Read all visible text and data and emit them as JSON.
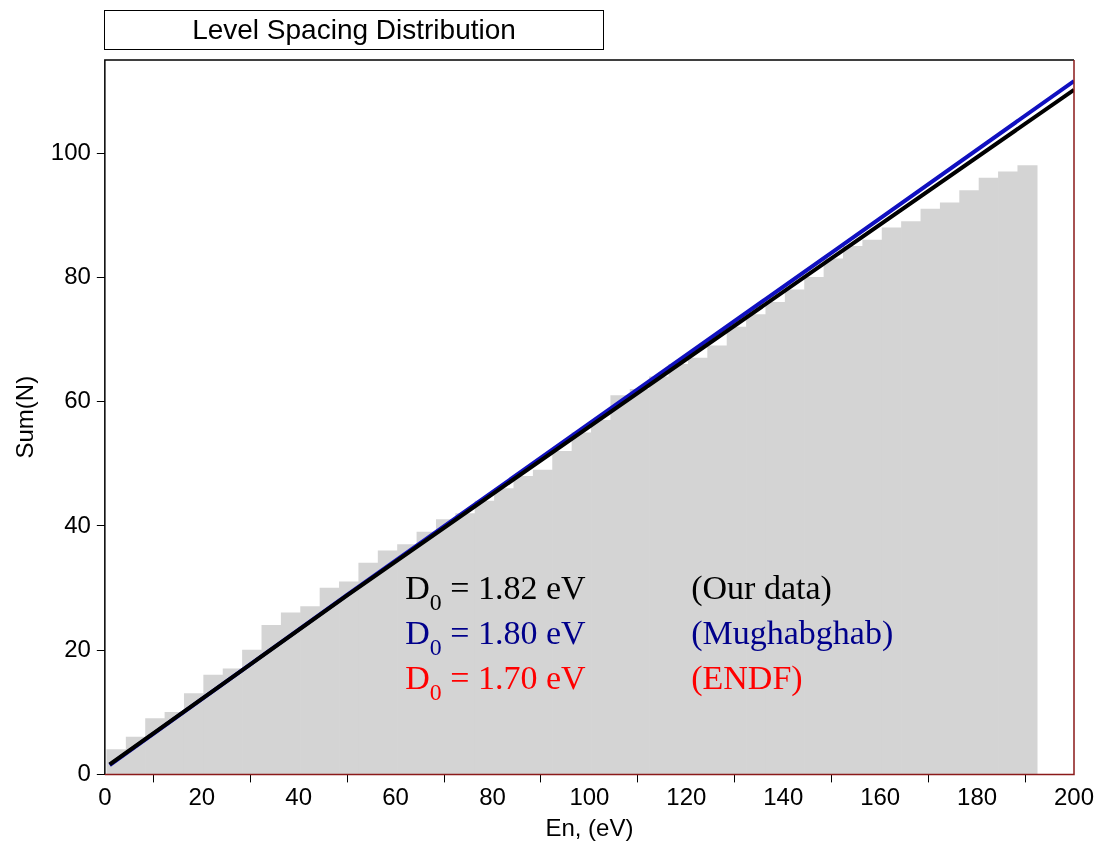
{
  "chart_data": {
    "type": "histogram",
    "title": "Level Spacing Distribution",
    "xlabel": "En, (eV)",
    "ylabel": "Sum(N)",
    "bins": [
      0.4,
      4.4,
      8.4,
      12.4,
      16.4,
      20.4,
      24.4,
      28.4,
      32.4,
      36.4,
      40.4,
      44.4,
      48.4,
      52.4,
      56.4,
      60.4,
      64.4,
      68.4,
      72.4,
      76.4,
      80.4,
      84.4,
      88.4,
      92.4,
      96.4,
      100.4,
      104.4,
      108.4,
      112.4,
      116.4,
      120.4,
      124.4,
      128.4,
      132.4,
      136.4,
      140.4,
      144.4,
      148.4,
      152.4,
      156.4,
      160.4,
      164.4,
      168.4,
      172.4,
      176.4,
      180.4,
      184.4,
      188.4,
      192.4
    ],
    "values": [
      4,
      6,
      9,
      10,
      13,
      16,
      17,
      20,
      24,
      26,
      27,
      30,
      31,
      34,
      36,
      37,
      39,
      41,
      42,
      44,
      46,
      48,
      49,
      52,
      55,
      57,
      61,
      62,
      64,
      66,
      67,
      69,
      72,
      74,
      76,
      78,
      80,
      83,
      85,
      86,
      88,
      89,
      91,
      92,
      94,
      96,
      97,
      98
    ],
    "color": "#d4d4d4",
    "series": [
      {
        "type": "line",
        "color": "#000000",
        "x": [
          1,
          50,
          100,
          150,
          200
        ],
        "values": [
          1.6,
          28.8,
          56,
          83.1,
          110.2
        ]
      },
      {
        "type": "line",
        "color": "#1010c0",
        "x": [
          1,
          50,
          100,
          150,
          200
        ],
        "values": [
          1.5,
          28.9,
          56.5,
          84,
          111.6
        ]
      }
    ],
    "xlim": [
      0,
      200
    ],
    "xticks": [
      0,
      20,
      40,
      60,
      80,
      100,
      120,
      140,
      160,
      180,
      200
    ],
    "ylim": [
      0,
      115
    ],
    "yticks": [
      0,
      20,
      40,
      60,
      80,
      100
    ],
    "legend": false,
    "annotations": [
      "D$_{0}$ = 1.82 eV",
      "(Our data)",
      "D$_{0}$ = 1.80 eV",
      "(Mughabghab)",
      "D$_{0}$ = 1.70 eV",
      "(ENDF)"
    ]
  }
}
